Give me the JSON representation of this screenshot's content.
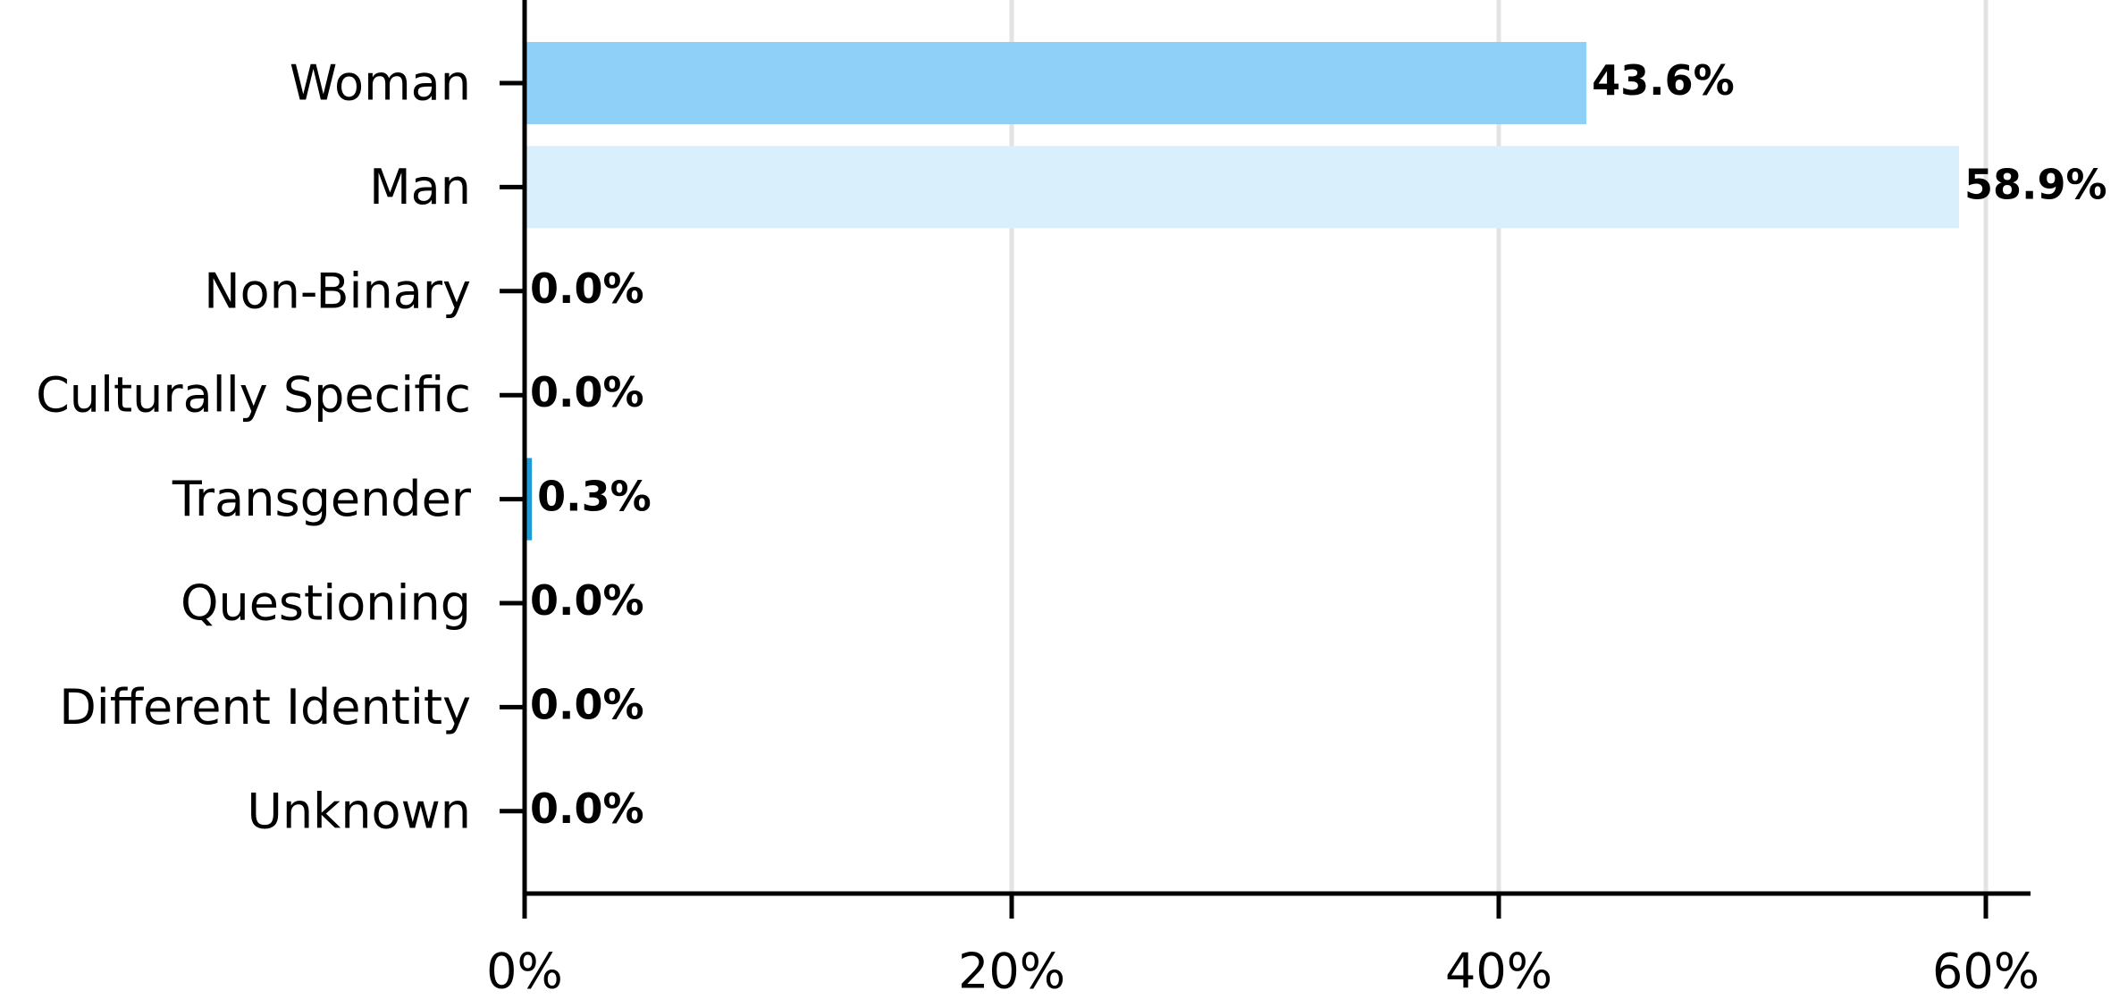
{
  "chart_data": {
    "type": "bar",
    "orientation": "horizontal",
    "categories": [
      "Woman",
      "Man",
      "Non-Binary",
      "Culturally Specific",
      "Transgender",
      "Questioning",
      "Different Identity",
      "Unknown"
    ],
    "values": [
      43.6,
      58.9,
      0.0,
      0.0,
      0.3,
      0.0,
      0.0,
      0.0
    ],
    "value_labels": [
      "43.6%",
      "58.9%",
      "0.0%",
      "0.0%",
      "0.3%",
      "0.0%",
      "0.0%",
      "0.0%"
    ],
    "bar_colors": [
      "#8fd0f8",
      "#d9f0fc",
      "#8fd0f8",
      "#8fd0f8",
      "#1e9ad6",
      "#8fd0f8",
      "#8fd0f8",
      "#8fd0f8"
    ],
    "xlim": [
      0,
      62
    ],
    "xticks": [
      0,
      20,
      40,
      60
    ],
    "xtick_labels": [
      "0%",
      "20%",
      "40%",
      "60%"
    ],
    "grid": "vertical",
    "grid_color": "#e3e3e3",
    "title": "",
    "xlabel": "",
    "ylabel": ""
  }
}
